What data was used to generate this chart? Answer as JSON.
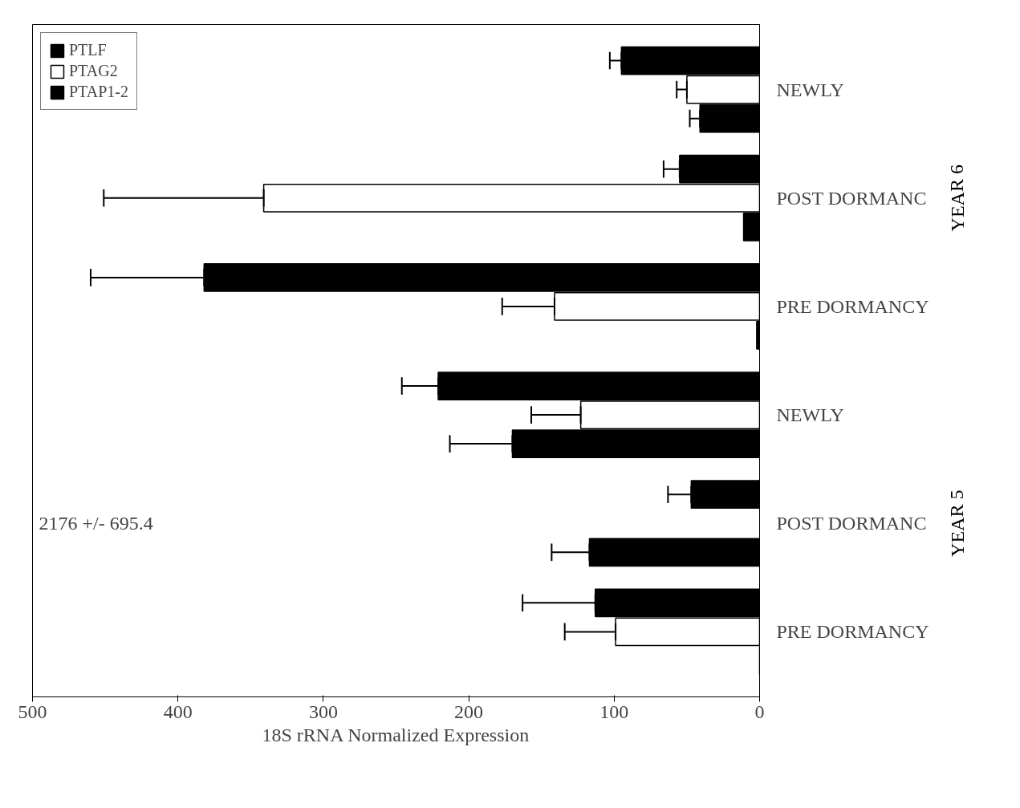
{
  "chart_data": {
    "type": "bar",
    "orientation": "horizontal",
    "xlabel": "18S rRNA Normalized Expression",
    "categories": [
      "NEWLY",
      "POST DORMANC",
      "PRE DORMANCY",
      "NEWLY",
      "POST DORMANC",
      "PRE DORMANCY"
    ],
    "series": [
      {
        "name": "PTLF",
        "color": "#000000",
        "values": [
          95,
          55,
          382,
          221,
          47,
          113
        ],
        "errors": [
          [
            95,
            103
          ],
          [
            55,
            66
          ],
          [
            382,
            460
          ],
          [
            221,
            246
          ],
          [
            47,
            63
          ],
          [
            113,
            163
          ]
        ]
      },
      {
        "name": "PTAG2",
        "color": "#ffffff",
        "values": [
          50,
          341,
          141,
          123,
          null,
          99
        ],
        "errors": [
          [
            50,
            57
          ],
          [
            341,
            451
          ],
          [
            141,
            177
          ],
          [
            123,
            157
          ],
          null,
          [
            99,
            134
          ]
        ]
      },
      {
        "name": "PTAP1-2",
        "color": "#000000",
        "values": [
          41,
          11,
          2,
          170,
          117,
          0
        ],
        "errors": [
          [
            41,
            48
          ],
          null,
          null,
          [
            170,
            213
          ],
          [
            117,
            143
          ],
          null
        ]
      }
    ],
    "xlim": [
      500,
      0
    ],
    "xticks": [
      0,
      100,
      200,
      300,
      400,
      500
    ],
    "grid": false,
    "legend": "top left",
    "annotations": [
      "2176 +/- 695.4",
      "YEAR 6",
      "YEAR 5"
    ]
  }
}
